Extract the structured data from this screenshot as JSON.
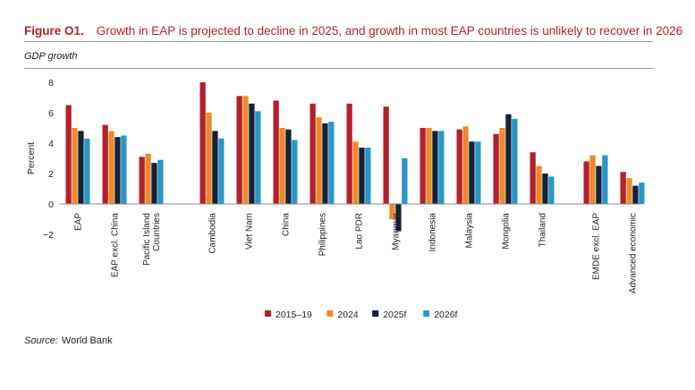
{
  "header": {
    "figure_label": "Figure O1.",
    "title": "Growth in EAP is projected to decline in 2025, and growth in most EAP countries is unlikely to recover in 2026",
    "subtitle": "GDP growth"
  },
  "footer": {
    "source_label": "Source:",
    "source_text": "World Bank"
  },
  "chart_data": {
    "type": "bar",
    "ylabel": "Percent",
    "ylim": [
      -2,
      8
    ],
    "yticks": [
      -2,
      0,
      2,
      4,
      6,
      8
    ],
    "ytick_labels": [
      "−2",
      "0",
      "2",
      "4",
      "6",
      "8"
    ],
    "grid": false,
    "legend_position": "bottom",
    "categories": [
      "EAP",
      "EAP excl. China",
      "Pacific Island Countries",
      "Cambodia",
      "Viet Nam",
      "China",
      "Philippines",
      "Lao PDR",
      "Myanmar",
      "Indonesia",
      "Malaysia",
      "Mongolia",
      "Thailand",
      "EMDE excl. EAP",
      "Advanced economic"
    ],
    "series": [
      {
        "name": "2015–19",
        "color": "#b5202e",
        "values": [
          6.5,
          5.2,
          3.1,
          8.0,
          7.1,
          6.8,
          6.6,
          6.6,
          6.4,
          5.0,
          4.9,
          4.6,
          3.4,
          2.8,
          2.1
        ]
      },
      {
        "name": "2024",
        "color": "#ee8a2a",
        "values": [
          5.0,
          4.8,
          3.3,
          6.0,
          7.1,
          5.0,
          5.7,
          4.1,
          -1.0,
          5.0,
          5.1,
          5.0,
          2.5,
          3.2,
          1.7
        ]
      },
      {
        "name": "2025f",
        "color": "#14213a",
        "values": [
          4.8,
          4.4,
          2.7,
          4.8,
          6.6,
          4.9,
          5.3,
          3.7,
          -1.8,
          4.8,
          4.1,
          5.9,
          2.0,
          2.5,
          1.2
        ]
      },
      {
        "name": "2026f",
        "color": "#2a96c8",
        "values": [
          4.3,
          4.5,
          2.9,
          4.3,
          6.1,
          4.2,
          5.4,
          3.7,
          3.0,
          4.8,
          4.1,
          5.6,
          1.8,
          3.2,
          1.4
        ]
      }
    ]
  }
}
